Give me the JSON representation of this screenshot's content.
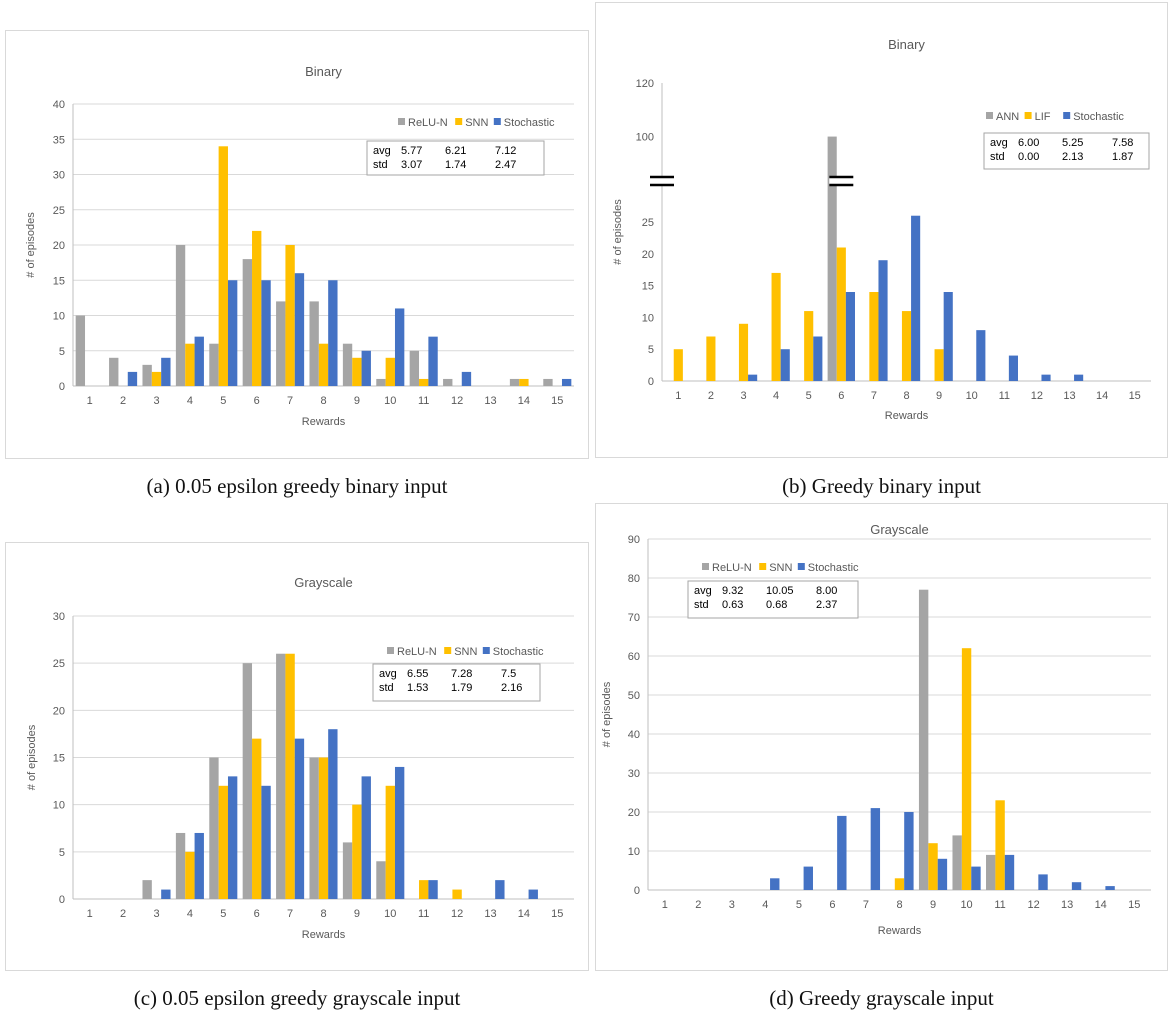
{
  "charts": [
    {
      "type": "bar",
      "title": "Binary",
      "xlabel": "Rewards",
      "ylabel": "# of episodes",
      "categories": [
        "1",
        "2",
        "3",
        "4",
        "5",
        "6",
        "7",
        "8",
        "9",
        "10",
        "11",
        "12",
        "13",
        "14",
        "15"
      ],
      "ylim": [
        0,
        40
      ],
      "yticks": [
        0,
        5,
        10,
        15,
        20,
        25,
        30,
        35,
        40
      ],
      "grid": true,
      "legend_position": "top-right",
      "series": [
        {
          "name": "ReLU-N",
          "color": "#a5a5a5",
          "values": [
            10,
            4,
            3,
            20,
            6,
            18,
            12,
            12,
            6,
            1,
            5,
            1,
            0,
            1,
            1
          ]
        },
        {
          "name": "SNN",
          "color": "#ffc000",
          "values": [
            0,
            0,
            2,
            6,
            34,
            22,
            20,
            6,
            4,
            4,
            1,
            0,
            0,
            1,
            0
          ]
        },
        {
          "name": "Stochastic",
          "color": "#4472c4",
          "values": [
            0,
            2,
            4,
            7,
            15,
            15,
            16,
            15,
            5,
            11,
            7,
            2,
            0,
            0,
            1
          ]
        }
      ],
      "stats": {
        "rows": [
          [
            "avg",
            "5.77",
            "6.21",
            "7.12"
          ],
          [
            "std",
            "3.07",
            "1.74",
            "2.47"
          ]
        ]
      },
      "caption": "(a) 0.05 epsilon greedy binary input"
    },
    {
      "type": "bar",
      "title": "Binary",
      "xlabel": "Rewards",
      "ylabel": "# of episodes",
      "categories": [
        "1",
        "2",
        "3",
        "4",
        "5",
        "6",
        "7",
        "8",
        "9",
        "10",
        "11",
        "12",
        "13",
        "14",
        "15"
      ],
      "ylim": [
        0,
        120
      ],
      "yticks": [
        0,
        5,
        10,
        15,
        20,
        25,
        100,
        120
      ],
      "broken_axis": {
        "lower_range": [
          0,
          28
        ],
        "upper_range": [
          92,
          120
        ]
      },
      "grid": false,
      "legend_position": "top-right",
      "series": [
        {
          "name": "ANN",
          "color": "#a5a5a5",
          "values": [
            0,
            0,
            0,
            0,
            0,
            100,
            0,
            0,
            0,
            0,
            0,
            0,
            0,
            0,
            0
          ]
        },
        {
          "name": "LIF",
          "color": "#ffc000",
          "values": [
            5,
            7,
            9,
            17,
            11,
            21,
            14,
            11,
            5,
            0,
            0,
            0,
            0,
            0,
            0
          ]
        },
        {
          "name": "Stochastic",
          "color": "#4472c4",
          "values": [
            0,
            0,
            1,
            5,
            7,
            14,
            19,
            26,
            14,
            8,
            4,
            1,
            1,
            0,
            0
          ]
        }
      ],
      "stats": {
        "rows": [
          [
            "avg",
            "6.00",
            "5.25",
            "7.58"
          ],
          [
            "std",
            "0.00",
            "2.13",
            "1.87"
          ]
        ]
      },
      "caption": "(b) Greedy binary input"
    },
    {
      "type": "bar",
      "title": "Grayscale",
      "xlabel": "Rewards",
      "ylabel": "# of episodes",
      "categories": [
        "1",
        "2",
        "3",
        "4",
        "5",
        "6",
        "7",
        "8",
        "9",
        "10",
        "11",
        "12",
        "13",
        "14",
        "15"
      ],
      "ylim": [
        0,
        30
      ],
      "yticks": [
        0,
        5,
        10,
        15,
        20,
        25,
        30
      ],
      "grid": true,
      "legend_position": "top-right",
      "series": [
        {
          "name": "ReLU-N",
          "color": "#a5a5a5",
          "values": [
            0,
            0,
            2,
            7,
            15,
            25,
            26,
            15,
            6,
            4,
            0,
            0,
            0,
            0,
            0
          ]
        },
        {
          "name": "SNN",
          "color": "#ffc000",
          "values": [
            0,
            0,
            0,
            5,
            12,
            17,
            26,
            15,
            10,
            12,
            2,
            1,
            0,
            0,
            0
          ]
        },
        {
          "name": "Stochastic",
          "color": "#4472c4",
          "values": [
            0,
            0,
            1,
            7,
            13,
            12,
            17,
            18,
            13,
            14,
            2,
            0,
            2,
            1,
            0
          ]
        }
      ],
      "stats": {
        "rows": [
          [
            "avg",
            "6.55",
            "7.28",
            "7.5"
          ],
          [
            "std",
            "1.53",
            "1.79",
            "2.16"
          ]
        ]
      },
      "caption": "(c) 0.05 epsilon greedy grayscale input"
    },
    {
      "type": "bar",
      "title": "Grayscale",
      "xlabel": "Rewards",
      "ylabel": "# of episodes",
      "categories": [
        "1",
        "2",
        "3",
        "4",
        "5",
        "6",
        "7",
        "8",
        "9",
        "10",
        "11",
        "12",
        "13",
        "14",
        "15"
      ],
      "ylim": [
        0,
        90
      ],
      "yticks": [
        0,
        10,
        20,
        30,
        40,
        50,
        60,
        70,
        80,
        90
      ],
      "grid": true,
      "legend_position": "top-left",
      "series": [
        {
          "name": "ReLU-N",
          "color": "#a5a5a5",
          "values": [
            0,
            0,
            0,
            0,
            0,
            0,
            0,
            0,
            77,
            14,
            9,
            0,
            0,
            0,
            0
          ]
        },
        {
          "name": "SNN",
          "color": "#ffc000",
          "values": [
            0,
            0,
            0,
            0,
            0,
            0,
            0,
            3,
            12,
            62,
            23,
            0,
            0,
            0,
            0
          ]
        },
        {
          "name": "Stochastic",
          "color": "#4472c4",
          "values": [
            0,
            0,
            0,
            3,
            6,
            19,
            21,
            20,
            8,
            6,
            9,
            4,
            2,
            1,
            0
          ]
        }
      ],
      "stats": {
        "rows": [
          [
            "avg",
            "9.32",
            "10.05",
            "8.00"
          ],
          [
            "std",
            "0.63",
            "0.68",
            "2.37"
          ]
        ]
      },
      "caption": "(d) Greedy grayscale input"
    }
  ]
}
